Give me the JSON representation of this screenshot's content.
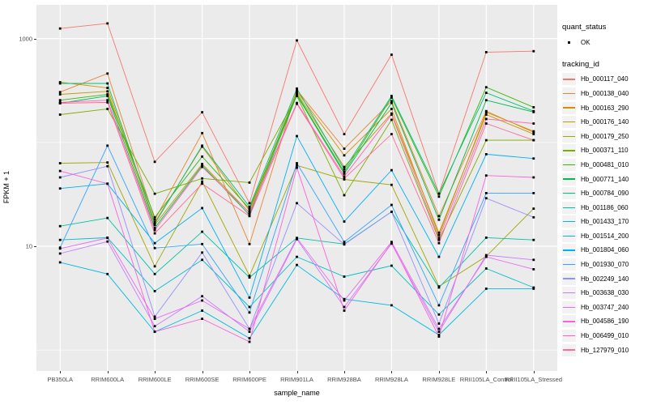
{
  "figure": {
    "y_axis": {
      "title": "FPKM + 1",
      "ticks": [
        "1000",
        "10"
      ]
    },
    "x_axis": {
      "title": "sample_name"
    },
    "legend": {
      "quant_title": "quant_status",
      "quant_item_label": "OK",
      "tracking_title": "tracking_id"
    }
  },
  "chart_data": {
    "type": "line",
    "title": "",
    "xlabel": "sample_name",
    "ylabel": "FPKM + 1",
    "y_scale": "log10",
    "ylim": [
      0.65,
      1960
    ],
    "y_breaks": [
      10,
      1000
    ],
    "y_minor_breaks": [
      1,
      100
    ],
    "grid": true,
    "legend_position": "right",
    "panel_bg": "#EBEBEB",
    "grid_color": "#FFFFFF",
    "point_color": "#000000",
    "point_shape": "square",
    "quant_status": "OK",
    "categories": [
      "PB350LA",
      "RRIM600LA",
      "RRIM600LE",
      "RRIM600SE",
      "RRIM600PE",
      "RRIM901LA",
      "RRIM928BA",
      "RRIM928LA",
      "RRIM928LE",
      "RRII105LA_Control",
      "RRII105LA_Stressed"
    ],
    "series": [
      {
        "name": "Hb_000117_040",
        "color": "#F8766D",
        "values": [
          1250,
          1400,
          65,
          195,
          26,
          960,
          120,
          700,
          32,
          740,
          755
        ]
      },
      {
        "name": "Hb_000138_040",
        "color": "#EA8331",
        "values": [
          305,
          460,
          18,
          123,
          10.5,
          320,
          87,
          250,
          19.5,
          200,
          125
        ]
      },
      {
        "name": "Hb_000163_290",
        "color": "#D89000",
        "values": [
          380,
          335,
          17,
          91,
          22,
          310,
          75,
          210,
          12.8,
          195,
          128
        ]
      },
      {
        "name": "Hb_000176_140",
        "color": "#C09B00",
        "values": [
          290,
          310,
          16,
          62,
          21,
          300,
          58,
          190,
          13.5,
          185,
          120
        ]
      },
      {
        "name": "Hb_000179_250",
        "color": "#A3A500",
        "values": [
          63,
          64,
          6.4,
          42,
          5.2,
          60,
          44,
          39,
          4.1,
          8,
          23
        ]
      },
      {
        "name": "Hb_000371_110",
        "color": "#7CAE00",
        "values": [
          185,
          210,
          32,
          45,
          41,
          280,
          31,
          165,
          11.5,
          105,
          105
        ]
      },
      {
        "name": "Hb_000481_010",
        "color": "#39B600",
        "values": [
          255,
          290,
          19,
          73,
          23,
          290,
          52,
          270,
          30,
          340,
          218
        ]
      },
      {
        "name": "Hb_000771_140",
        "color": "#00BB4E",
        "values": [
          238,
          280,
          15,
          60,
          20,
          285,
          50,
          240,
          18,
          255,
          196
        ]
      },
      {
        "name": "Hb_000784_090",
        "color": "#00BF7D",
        "values": [
          370,
          370,
          16.5,
          93,
          24,
          330,
          55,
          280,
          32,
          300,
          200
        ]
      },
      {
        "name": "Hb_001186_060",
        "color": "#00C1A3",
        "values": [
          15.6,
          18.7,
          5.4,
          13.8,
          5,
          12,
          10.5,
          21.5,
          4,
          12.1,
          11.5
        ]
      },
      {
        "name": "Hb_001433_170",
        "color": "#00BFC4",
        "values": [
          11.5,
          12.1,
          3.7,
          7.4,
          2.6,
          7.9,
          5.1,
          6.5,
          2.2,
          6.1,
          4
        ]
      },
      {
        "name": "Hb_001514_200",
        "color": "#00BAE0",
        "values": [
          7,
          5.4,
          1.5,
          2.4,
          1.3,
          6.6,
          3.1,
          2.7,
          1.4,
          3.9,
          3.9
        ]
      },
      {
        "name": "Hb_001804_060",
        "color": "#00B0F6",
        "values": [
          36,
          40,
          10.7,
          23.3,
          3.2,
          115,
          17.3,
          54,
          7.9,
          77,
          70
        ]
      },
      {
        "name": "Hb_001930_070",
        "color": "#35A2FF",
        "values": [
          9.7,
          93,
          9.6,
          10.5,
          2.3,
          63,
          11,
          25,
          2.7,
          32.5,
          32.5
        ]
      },
      {
        "name": "Hb_002249_140",
        "color": "#9590FF",
        "values": [
          46,
          59,
          2.1,
          8.7,
          1.6,
          26,
          10.4,
          21.5,
          1.8,
          29,
          19
        ]
      },
      {
        "name": "Hb_003638_030",
        "color": "#C77CFF",
        "values": [
          8.5,
          11.1,
          1.7,
          3.3,
          1.5,
          11.7,
          2.6,
          10.6,
          1.5,
          8.2,
          7.4
        ]
      },
      {
        "name": "Hb_003747_240",
        "color": "#E76BF3",
        "values": [
          9.5,
          12,
          2,
          3,
          1.6,
          12,
          3,
          11,
          1.6,
          7.9,
          6
        ]
      },
      {
        "name": "Hb_004586_190",
        "color": "#FA62DB",
        "values": [
          53,
          40,
          1.5,
          2,
          1.2,
          57,
          2.4,
          10.8,
          1.35,
          48,
          46
        ]
      },
      {
        "name": "Hb_006499_010",
        "color": "#FF62BC",
        "values": [
          243,
          255,
          14.3,
          58,
          21,
          240,
          47,
          185,
          12,
          168,
          152
        ]
      },
      {
        "name": "Hb_127979_010",
        "color": "#FF6A98",
        "values": [
          238,
          243,
          13.3,
          40,
          19.5,
          235,
          45,
          120,
          10.7,
          152,
          105
        ]
      }
    ]
  }
}
